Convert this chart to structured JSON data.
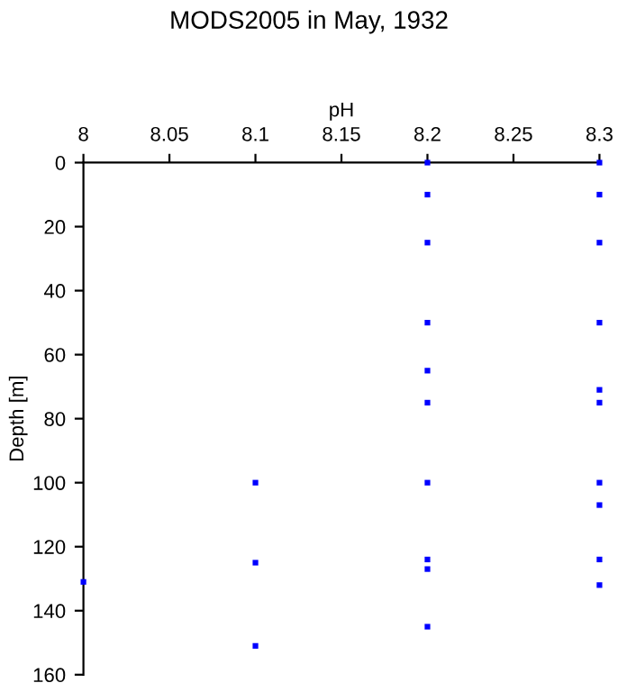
{
  "chart_data": {
    "type": "scatter",
    "title": "MODS2005 in May, 1932",
    "xlabel": "pH",
    "ylabel": "Depth [m]",
    "x": [
      8.2,
      8.2,
      8.2,
      8.2,
      8.2,
      8.2,
      8.2,
      8.2,
      8.2,
      8.2,
      8.3,
      8.3,
      8.3,
      8.3,
      8.3,
      8.3,
      8.3,
      8.3,
      8.3,
      8.3,
      8.1,
      8.1,
      8.1,
      8.0
    ],
    "values": [
      0,
      10,
      25,
      50,
      65,
      75,
      100,
      124,
      127,
      145,
      0,
      10,
      25,
      50,
      71,
      75,
      100,
      107,
      124,
      132,
      100,
      125,
      151,
      131
    ],
    "color": "#0000ff",
    "marker": "square",
    "xlim": [
      8.0,
      8.3
    ],
    "xticks": [
      8,
      8.05,
      8.1,
      8.15,
      8.2,
      8.25,
      8.3
    ],
    "ylim": [
      160,
      0
    ],
    "yticks": [
      0,
      20,
      40,
      60,
      80,
      100,
      120,
      140,
      160
    ],
    "grid": false
  }
}
